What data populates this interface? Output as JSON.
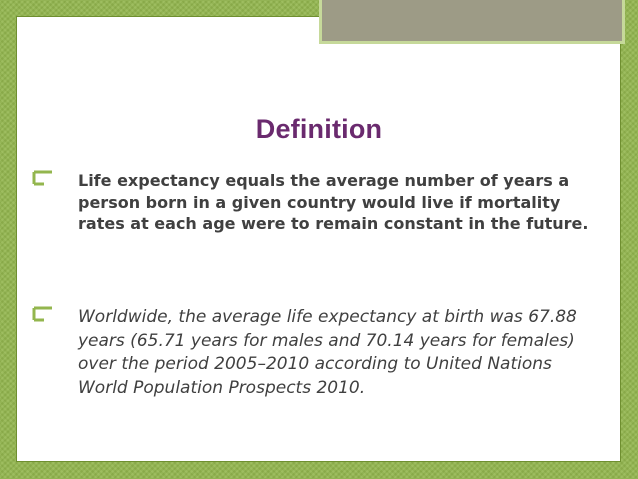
{
  "slide": {
    "title": "Definition",
    "bullets": [
      {
        "marker": "",
        "text": "Life expectancy equals the average number of years a person born in a given country would live if mortality rates at each age were to remain constant in the future."
      },
      {
        "marker": "",
        "text": "Worldwide, the average life expectancy at birth was 67.88 years (65.71 years for males and 70.14 years for females) over the period 2005–2010 according to United Nations World Population Prospects 2010."
      }
    ]
  },
  "colors": {
    "background": "#93b64e",
    "title": "#6a2a6e",
    "body_text": "#404040",
    "accent": "#9d9b86"
  }
}
